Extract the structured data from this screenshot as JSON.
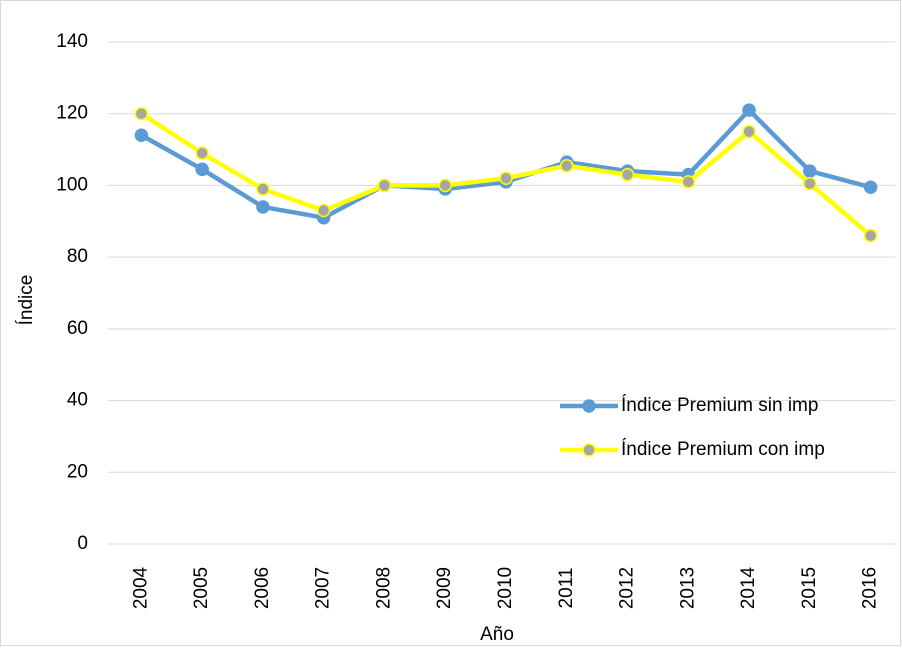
{
  "chart_data": {
    "type": "line",
    "x_label": "Año",
    "y_label": "Índice",
    "categories": [
      "2004",
      "2005",
      "2006",
      "2007",
      "2008",
      "2009",
      "2010",
      "2011",
      "2012",
      "2013",
      "2014",
      "2015",
      "2016"
    ],
    "series": [
      {
        "name": "Índice Premium sin imp",
        "color": "#5b9bd5",
        "marker_color": "#5b9bd5",
        "values": [
          114,
          104.5,
          94,
          91,
          100,
          99,
          101,
          106.5,
          104,
          103,
          121,
          104,
          99.5
        ]
      },
      {
        "name": "Índice Premium con imp",
        "color": "#ffff00",
        "marker_color": "#a5a5a5",
        "values": [
          120,
          109,
          99,
          93,
          100,
          100,
          102,
          105.5,
          103,
          101,
          115,
          100.5,
          86
        ]
      }
    ],
    "ylim": [
      0,
      140
    ],
    "yticks": [
      0,
      20,
      40,
      60,
      80,
      100,
      120,
      140
    ],
    "grid": true,
    "legend": "right"
  }
}
